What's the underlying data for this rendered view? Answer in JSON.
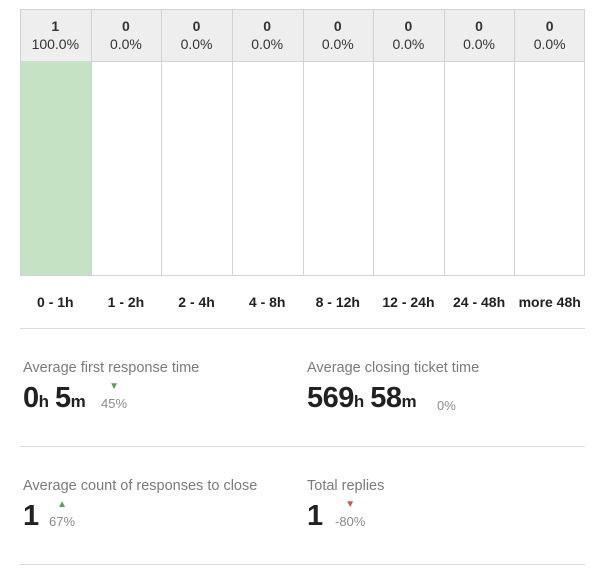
{
  "chart_data": {
    "type": "bar",
    "categories": [
      "0 - 1h",
      "1 - 2h",
      "2 - 4h",
      "4 - 8h",
      "8 - 12h",
      "12 - 24h",
      "24 - 48h",
      "more 48h"
    ],
    "values": [
      1,
      0,
      0,
      0,
      0,
      0,
      0,
      0
    ],
    "percent_labels": [
      "100.0%",
      "0.0%",
      "0.0%",
      "0.0%",
      "0.0%",
      "0.0%",
      "0.0%",
      "0.0%"
    ],
    "fill_fraction": [
      1.0,
      0,
      0,
      0,
      0,
      0,
      0,
      0
    ],
    "colors": {
      "fill": "#c5e3c4",
      "header": "#eeeeee",
      "grid": "#d2d2d2"
    }
  },
  "metrics": {
    "first_response": {
      "label": "Average first response time",
      "hours": "0",
      "hours_unit": "h",
      "minutes": "5",
      "minutes_unit": "m",
      "trend": "45%",
      "trend_direction": "down",
      "trend_color": "#5aa05a"
    },
    "closing_time": {
      "label": "Average closing ticket time",
      "hours": "569",
      "hours_unit": "h",
      "minutes": "58",
      "minutes_unit": "m",
      "trend": "0%"
    },
    "responses_to_close": {
      "label": "Average count of responses to close",
      "value": "1",
      "trend": "67%",
      "trend_direction": "up",
      "trend_color": "#5aa05a"
    },
    "total_replies": {
      "label": "Total replies",
      "value": "1",
      "trend": "-80%",
      "trend_direction": "down",
      "trend_color": "#d9534f"
    }
  }
}
